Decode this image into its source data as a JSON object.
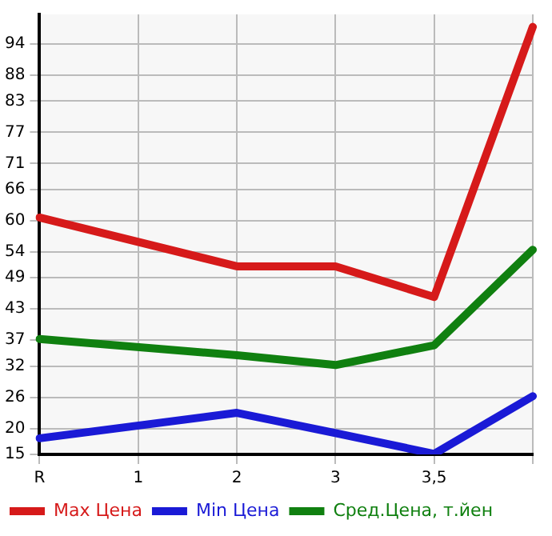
{
  "chart_data": {
    "type": "line",
    "categories": [
      "R",
      "1",
      "2",
      "3",
      "3,5",
      null
    ],
    "series": [
      {
        "name": "Max Цена",
        "color": "#d61a1a",
        "values": [
          60.6,
          null,
          51.2,
          51.2,
          45.3,
          97.3
        ]
      },
      {
        "name": "Min Цена",
        "color": "#1a1ad6",
        "values": [
          18.1,
          null,
          23,
          19.1,
          15.1,
          26.2
        ]
      },
      {
        "name": "Сред.Цена, т.йен",
        "color": "#108010",
        "values": [
          37.2,
          null,
          34.1,
          32.2,
          36,
          54.4
        ]
      }
    ],
    "ylim": [
      15,
      99.7
    ],
    "yticks": [
      15,
      20,
      26,
      32,
      37,
      43,
      49,
      54,
      60,
      66,
      71,
      77,
      83,
      88,
      94
    ],
    "grid": true,
    "legend": "bottom",
    "marker": "none",
    "line_style": "solid"
  }
}
